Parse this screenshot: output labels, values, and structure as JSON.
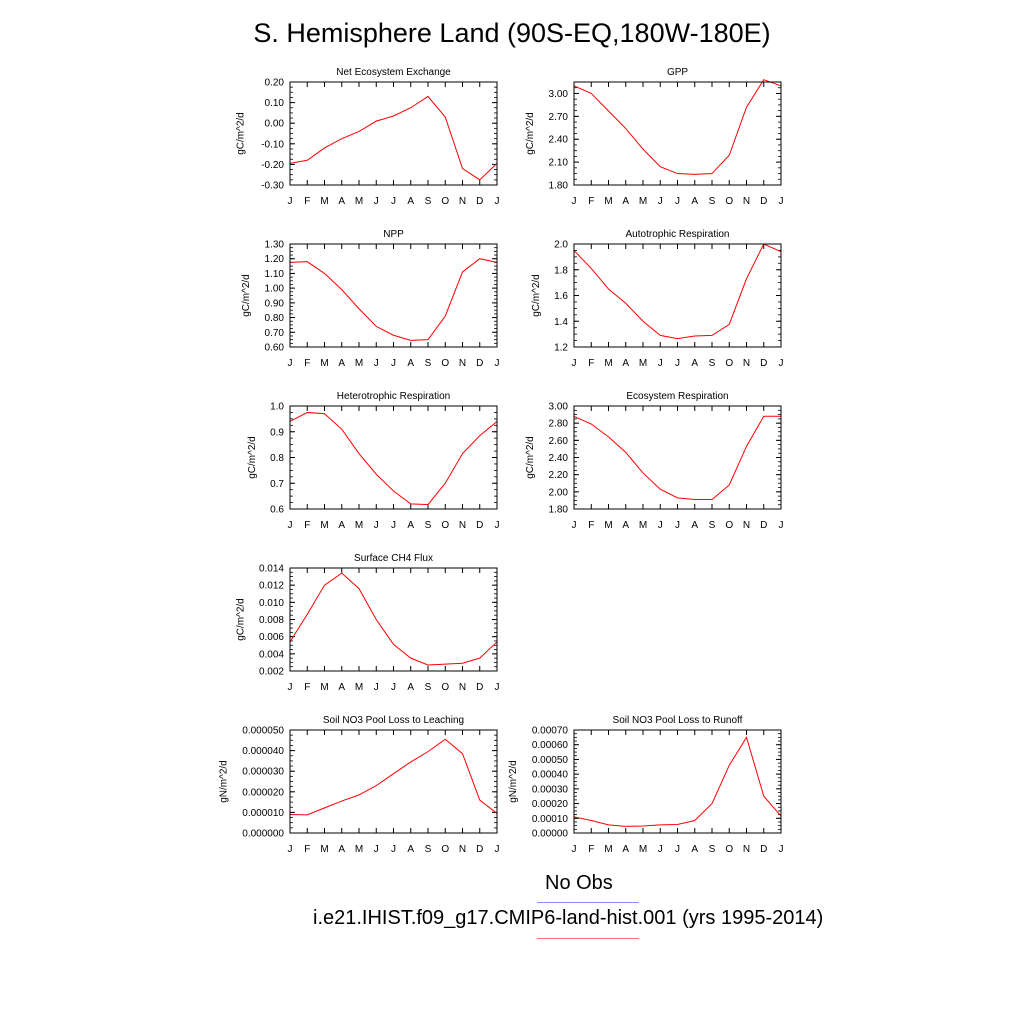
{
  "page_title": "S. Hemisphere Land (90S-EQ,180W-180E)",
  "legend": {
    "obs_label": "No Obs",
    "obs_color": "#8c8cff",
    "model_label": "i.e21.IHIST.f09_g17.CMIP6-land-hist.001 (yrs 1995-2014)",
    "model_color": "#ff6b6b"
  },
  "chart_data": [
    {
      "type": "line",
      "title": "Net Ecosystem Exchange",
      "ylabel": "gC/m^2/d",
      "x": [
        "J",
        "F",
        "M",
        "A",
        "M",
        "J",
        "J",
        "A",
        "S",
        "O",
        "N",
        "D",
        "J"
      ],
      "ylim": [
        -0.3,
        0.2
      ],
      "yticks": [
        "-0.30",
        "-0.20",
        "-0.10",
        "0.00",
        "0.10",
        "0.20"
      ],
      "series": [
        {
          "color": "#ff0000",
          "values": [
            -0.195,
            -0.18,
            -0.12,
            -0.075,
            -0.04,
            0.01,
            0.035,
            0.075,
            0.13,
            0.03,
            -0.22,
            -0.275,
            -0.195
          ]
        }
      ]
    },
    {
      "type": "line",
      "title": "GPP",
      "ylabel": "gC/m^2/d",
      "x": [
        "J",
        "F",
        "M",
        "A",
        "M",
        "J",
        "J",
        "A",
        "S",
        "O",
        "N",
        "D",
        "J"
      ],
      "ylim": [
        1.8,
        3.15
      ],
      "yticks": [
        "1.80",
        "2.10",
        "2.40",
        "2.70",
        "3.00"
      ],
      "series": [
        {
          "color": "#ff0000",
          "values": [
            3.1,
            3.0,
            2.77,
            2.54,
            2.27,
            2.04,
            1.95,
            1.94,
            1.95,
            2.19,
            2.82,
            3.18,
            3.1
          ]
        }
      ]
    },
    {
      "type": "line",
      "title": "NPP",
      "ylabel": "gC/m^2/d",
      "x": [
        "J",
        "F",
        "M",
        "A",
        "M",
        "J",
        "J",
        "A",
        "S",
        "O",
        "N",
        "D",
        "J"
      ],
      "ylim": [
        0.6,
        1.3
      ],
      "yticks": [
        "0.60",
        "0.70",
        "0.80",
        "0.90",
        "1.00",
        "1.10",
        "1.20",
        "1.30"
      ],
      "series": [
        {
          "color": "#ff0000",
          "values": [
            1.175,
            1.18,
            1.1,
            0.99,
            0.86,
            0.74,
            0.68,
            0.645,
            0.65,
            0.81,
            1.11,
            1.2,
            1.175
          ]
        }
      ]
    },
    {
      "type": "line",
      "title": "Autotrophic Respiration",
      "ylabel": "gC/m^2/d",
      "x": [
        "J",
        "F",
        "M",
        "A",
        "M",
        "J",
        "J",
        "A",
        "S",
        "O",
        "N",
        "D",
        "J"
      ],
      "ylim": [
        1.2,
        2.0
      ],
      "yticks": [
        "1.2",
        "1.4",
        "1.6",
        "1.8",
        "2.0"
      ],
      "series": [
        {
          "color": "#ff0000",
          "values": [
            1.95,
            1.81,
            1.65,
            1.54,
            1.4,
            1.29,
            1.265,
            1.285,
            1.29,
            1.375,
            1.73,
            2.0,
            1.94
          ]
        }
      ]
    },
    {
      "type": "line",
      "title": "Heterotrophic Respiration",
      "ylabel": "gC/m^2/d",
      "x": [
        "J",
        "F",
        "M",
        "A",
        "M",
        "J",
        "J",
        "A",
        "S",
        "O",
        "N",
        "D",
        "J"
      ],
      "ylim": [
        0.6,
        1.0
      ],
      "yticks": [
        "0.6",
        "0.7",
        "0.8",
        "0.9",
        "1.0"
      ],
      "series": [
        {
          "color": "#ff0000",
          "values": [
            0.94,
            0.975,
            0.97,
            0.91,
            0.815,
            0.735,
            0.67,
            0.62,
            0.617,
            0.7,
            0.815,
            0.885,
            0.94
          ]
        }
      ]
    },
    {
      "type": "line",
      "title": "Ecosystem Respiration",
      "ylabel": "gC/m^2/d",
      "x": [
        "J",
        "F",
        "M",
        "A",
        "M",
        "J",
        "J",
        "A",
        "S",
        "O",
        "N",
        "D",
        "J"
      ],
      "ylim": [
        1.8,
        3.0
      ],
      "yticks": [
        "1.80",
        "2.00",
        "2.20",
        "2.40",
        "2.60",
        "2.80",
        "3.00"
      ],
      "series": [
        {
          "color": "#ff0000",
          "values": [
            2.88,
            2.79,
            2.64,
            2.46,
            2.22,
            2.03,
            1.93,
            1.91,
            1.91,
            2.08,
            2.53,
            2.88,
            2.88
          ]
        }
      ]
    },
    {
      "type": "line",
      "title": "Surface CH4 Flux",
      "ylabel": "gC/m^2/d",
      "x": [
        "J",
        "F",
        "M",
        "A",
        "M",
        "J",
        "J",
        "A",
        "S",
        "O",
        "N",
        "D",
        "J"
      ],
      "ylim": [
        0.002,
        0.014
      ],
      "yticks": [
        "0.002",
        "0.004",
        "0.006",
        "0.008",
        "0.010",
        "0.012",
        "0.014"
      ],
      "series": [
        {
          "color": "#ff0000",
          "values": [
            0.0054,
            0.0086,
            0.012,
            0.0134,
            0.0116,
            0.008,
            0.0051,
            0.0035,
            0.0027,
            0.0028,
            0.0029,
            0.0035,
            0.0054
          ]
        }
      ]
    },
    {
      "type": "line",
      "title": "Soil NO3 Pool Loss to Leaching",
      "ylabel": "gN/m^2/d",
      "x": [
        "J",
        "F",
        "M",
        "A",
        "M",
        "J",
        "J",
        "A",
        "S",
        "O",
        "N",
        "D",
        "J"
      ],
      "ylim": [
        0.0,
        5e-05
      ],
      "yticks": [
        "0.000000",
        "0.000010",
        "0.000020",
        "0.000030",
        "0.000040",
        "0.000050"
      ],
      "series": [
        {
          "color": "#ff0000",
          "values": [
            9e-06,
            8.8e-06,
            1.22e-05,
            1.55e-05,
            1.85e-05,
            2.3e-05,
            2.88e-05,
            3.45e-05,
            3.95e-05,
            4.55e-05,
            3.85e-05,
            1.6e-05,
            9.5e-06
          ]
        }
      ]
    },
    {
      "type": "line",
      "title": "Soil NO3 Pool Loss to Runoff",
      "ylabel": "gN/m^2/d",
      "x": [
        "J",
        "F",
        "M",
        "A",
        "M",
        "J",
        "J",
        "A",
        "S",
        "O",
        "N",
        "D",
        "J"
      ],
      "ylim": [
        0.0,
        0.0007
      ],
      "yticks": [
        "0.00000",
        "0.00010",
        "0.00020",
        "0.00030",
        "0.00040",
        "0.00050",
        "0.00060",
        "0.00070"
      ],
      "series": [
        {
          "color": "#ff0000",
          "values": [
            0.00011,
            8.5e-05,
            5.5e-05,
            4.5e-05,
            4.8e-05,
            5.5e-05,
            5.8e-05,
            8.5e-05,
            0.0002,
            0.00046,
            0.00065,
            0.00025,
            0.000115
          ]
        }
      ]
    }
  ]
}
